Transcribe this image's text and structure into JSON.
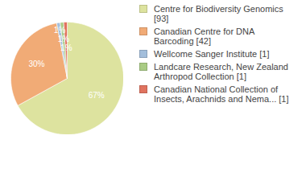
{
  "chart_data": {
    "type": "pie",
    "categories": [
      "Centre for Biodiversity Genomics [93]",
      "Canadian Centre for DNA Barcoding [42]",
      "Wellcome Sanger Institute [1]",
      "Landcare Research, New Zealand Arthropod Collection [1]",
      "Canadian National Collection of Insects, Arachnids and Nema... [1]"
    ],
    "values": [
      67,
      30,
      1,
      1,
      1
    ],
    "value_labels": [
      "67%",
      "30%",
      "1%",
      "1%",
      "1%"
    ],
    "colors": [
      "#dde39f",
      "#f1ab76",
      "#a3bedb",
      "#a9cb84",
      "#e0735f"
    ],
    "data_labels": true,
    "legend": "right"
  }
}
